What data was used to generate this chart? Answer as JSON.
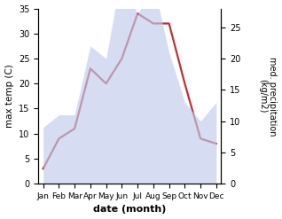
{
  "months": [
    "Jan",
    "Feb",
    "Mar",
    "Apr",
    "May",
    "Jun",
    "Jul",
    "Aug",
    "Sep",
    "Oct",
    "Nov",
    "Dec"
  ],
  "temperature": [
    3,
    9,
    11,
    23,
    20,
    25,
    34,
    32,
    32,
    20,
    9,
    8
  ],
  "precipitation": [
    9,
    11,
    11,
    22,
    20,
    34,
    27,
    32,
    21,
    13,
    10,
    13
  ],
  "temp_ylim": [
    0,
    35
  ],
  "precip_ylim": [
    0,
    28
  ],
  "fill_color": "#c0ccee",
  "fill_alpha": 0.65,
  "line_color": "#bb3333",
  "line_width": 1.6,
  "xlabel": "date (month)",
  "ylabel_left": "max temp (C)",
  "ylabel_right": "med. precipitation\n(kg/m2)",
  "right_yticks": [
    0,
    5,
    10,
    15,
    20,
    25
  ],
  "left_yticks": [
    0,
    5,
    10,
    15,
    20,
    25,
    30,
    35
  ],
  "bg_color": "#ffffff"
}
